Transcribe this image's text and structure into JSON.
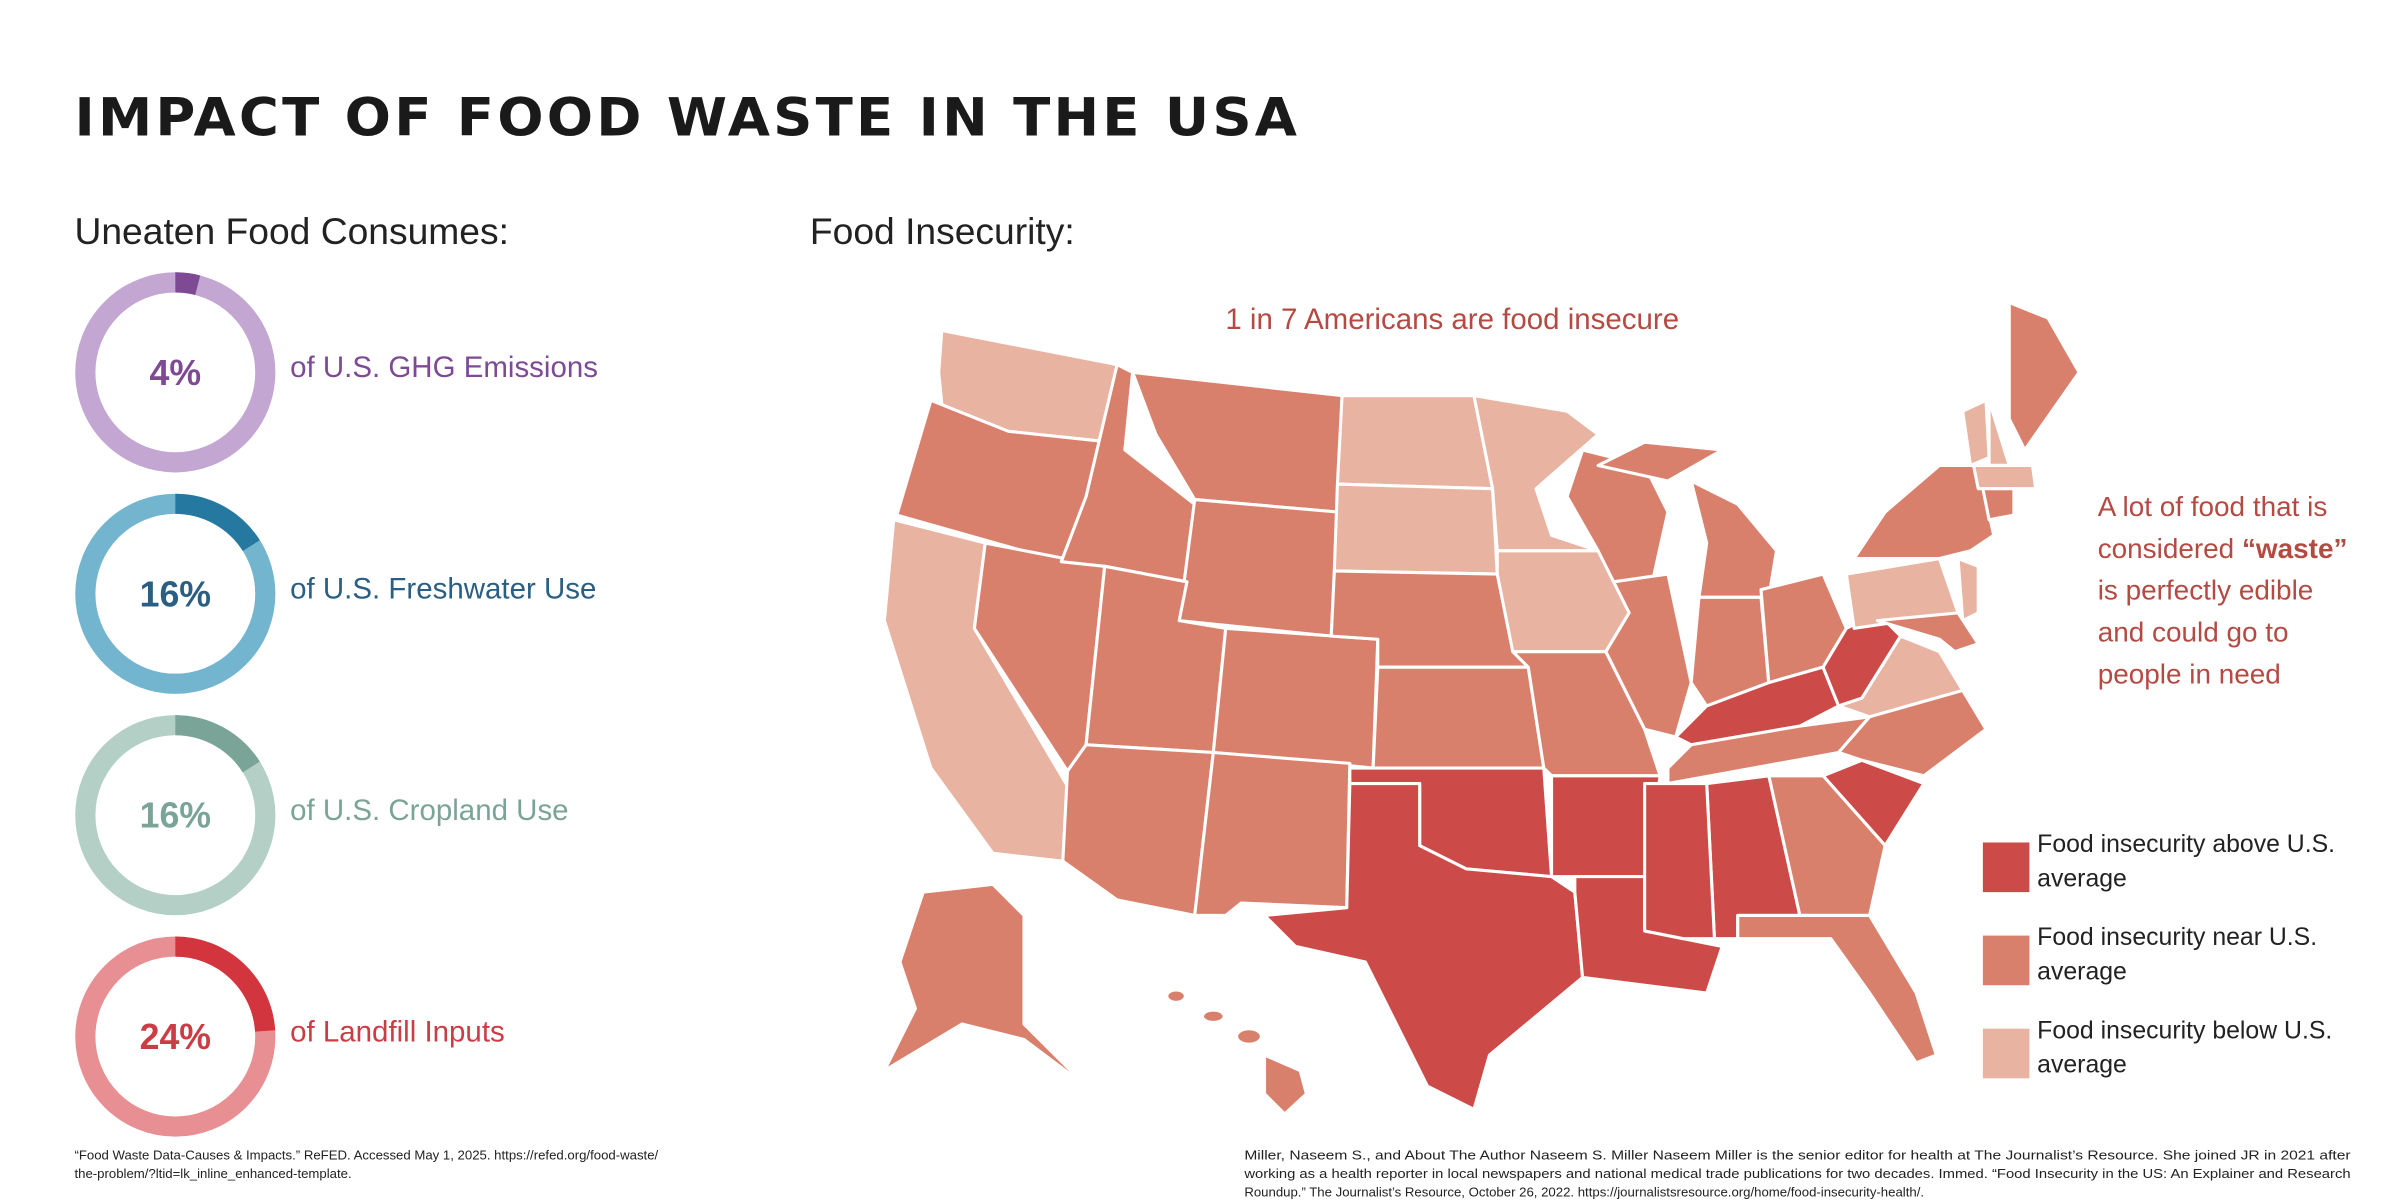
{
  "title": "IMPACT OF FOOD WASTE IN THE USA",
  "left_heading": "Uneaten Food Consumes:",
  "chart_data": [
    {
      "type": "donut",
      "values": [
        4
      ],
      "value_labels": [
        "4%"
      ],
      "label": "of U.S. GHG Emissions",
      "color": "#7e4a94",
      "track_color": "#c3a6d2",
      "text_color": "#7e4a94",
      "ylim": [
        0,
        100
      ]
    },
    {
      "type": "donut",
      "values": [
        16
      ],
      "value_labels": [
        "16%"
      ],
      "label": "of U.S. Freshwater Use",
      "color": "#2579a1",
      "track_color": "#73b4cf",
      "text_color": "#2a5f83",
      "ylim": [
        0,
        100
      ]
    },
    {
      "type": "donut",
      "values": [
        16
      ],
      "value_labels": [
        "16%"
      ],
      "label": "of U.S. Cropland Use",
      "color": "#7aa497",
      "track_color": "#b3cfc6",
      "text_color": "#7aa497",
      "ylim": [
        0,
        100
      ]
    },
    {
      "type": "donut",
      "values": [
        24
      ],
      "value_labels": [
        "24%"
      ],
      "label": "of Landfill Inputs",
      "color": "#d2353e",
      "track_color": "#e88f93",
      "text_color": "#cc3c44",
      "ylim": [
        0,
        100
      ]
    }
  ],
  "map": {
    "heading": "Food Insecurity:",
    "subtitle": "1 in 7 Americans are food insecure",
    "callout": [
      {
        "text": "A lot of food that is"
      },
      {
        "text": "considered ",
        "bold": "“waste”"
      },
      {
        "text": "is perfectly edible"
      },
      {
        "text": "and could go to"
      },
      {
        "text": "people in need"
      }
    ],
    "legend": [
      {
        "lines": [
          "Food insecurity above U.S.",
          "average"
        ],
        "color": "#cc4a47"
      },
      {
        "lines": [
          "Food insecurity near U.S.",
          "average"
        ],
        "color": "#d9806c"
      },
      {
        "lines": [
          "Food insecurity below U.S.",
          "average"
        ],
        "color": "#e8b3a1"
      }
    ]
  },
  "sources": {
    "left": [
      "“Food Waste Data-Causes & Impacts.” ReFED. Accessed May 1, 2025. https://refed.org/food-waste/",
      "the-problem/?ltid=lk_inline_enhanced-template."
    ],
    "right": [
      "Miller, Naseem S., and About The Author      Naseem S. Miller  Naseem Miller is the senior editor for health at The Journalist’s Resource. She joined JR in 2021 after",
      "working as a health reporter in local newspapers and national medical trade publications for two decades. Immed. “Food Insecurity in the US: An Explainer and Research",
      "Roundup.” The Journalist’s Resource, October 26, 2022. https://journalistsresource.org/home/food-insecurity-health/."
    ]
  }
}
